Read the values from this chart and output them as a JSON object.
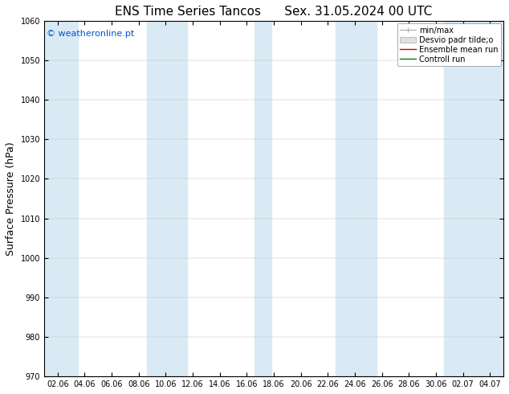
{
  "title1": "ENS Time Series Tancos",
  "title2": "Sex. 31.05.2024 00 UTC",
  "ylabel": "Surface Pressure (hPa)",
  "ylim": [
    970,
    1060
  ],
  "yticks": [
    970,
    980,
    990,
    1000,
    1010,
    1020,
    1030,
    1040,
    1050,
    1060
  ],
  "x_labels": [
    "02.06",
    "04.06",
    "06.06",
    "08.06",
    "10.06",
    "12.06",
    "14.06",
    "16.06",
    "18.06",
    "20.06",
    "22.06",
    "24.06",
    "26.06",
    "28.06",
    "30.06",
    "02.07",
    "04.07"
  ],
  "n_ticks": 17,
  "plot_bg_color": "#ffffff",
  "stripe_color": "#daeaf5",
  "watermark": "© weatheronline.pt",
  "watermark_color": "#0055cc",
  "legend_entries": [
    "min/max",
    "Desvio padr tilde;o",
    "Ensemble mean run",
    "Controll run"
  ],
  "legend_line_colors": [
    "#aaaaaa",
    "#cccccc",
    "#cc0000",
    "#007700"
  ],
  "fig_bg": "#ffffff",
  "tick_color": "#000000",
  "spine_color": "#000000",
  "title_fontsize": 11,
  "ylabel_fontsize": 9,
  "tick_fontsize": 7,
  "watermark_fontsize": 8,
  "legend_fontsize": 7,
  "stripe_positions_x": [
    0,
    3.5,
    7,
    10.5,
    14
  ],
  "stripe_widths_x": [
    0.6,
    1.0,
    0.6,
    1.0,
    1.2
  ]
}
